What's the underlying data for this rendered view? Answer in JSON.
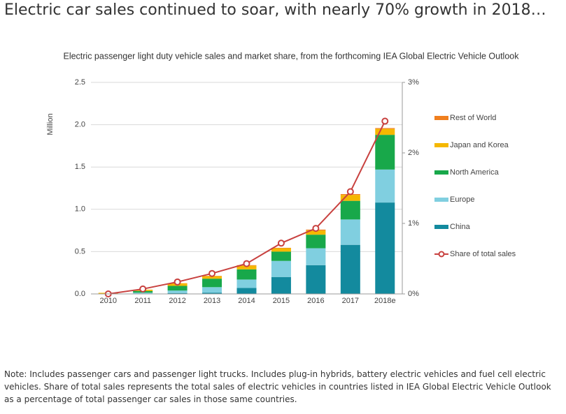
{
  "page_title": "Electric car sales continued to soar, with nearly 70% growth in 2018…",
  "chart_data": {
    "type": "bar",
    "stacked": true,
    "title": "Electric passenger light duty vehicle sales and market share, from the forthcoming IEA Global Electric Vehicle Outlook",
    "ylabel": "Million",
    "categories": [
      "2010",
      "2011",
      "2012",
      "2013",
      "2014",
      "2015",
      "2016",
      "2017",
      "2018e"
    ],
    "series": [
      {
        "name": "China",
        "color": "#138a9e",
        "values": [
          0.001,
          0.005,
          0.01,
          0.015,
          0.07,
          0.2,
          0.34,
          0.58,
          1.08
        ]
      },
      {
        "name": "Europe",
        "color": "#80cfe0",
        "values": [
          0.001,
          0.01,
          0.03,
          0.065,
          0.1,
          0.19,
          0.2,
          0.3,
          0.39
        ]
      },
      {
        "name": "North America",
        "color": "#18a84a",
        "values": [
          0.001,
          0.02,
          0.055,
          0.1,
          0.12,
          0.11,
          0.16,
          0.22,
          0.41
        ]
      },
      {
        "name": "Japan and Korea",
        "color": "#f5b800",
        "values": [
          0.01,
          0.015,
          0.03,
          0.03,
          0.045,
          0.04,
          0.05,
          0.07,
          0.07
        ]
      },
      {
        "name": "Rest of World",
        "color": "#f07f1e",
        "values": [
          0,
          0,
          0.002,
          0.003,
          0.005,
          0.005,
          0.01,
          0.01,
          0.01
        ]
      },
      {
        "name": "Share of total sales",
        "color": "#c8413f",
        "type": "line",
        "axis": "y2",
        "values": [
          0,
          0.07,
          0.17,
          0.29,
          0.43,
          0.72,
          0.93,
          1.45,
          2.45
        ]
      }
    ],
    "ylim": [
      0,
      2.5
    ],
    "yticks": [
      {
        "value": 0,
        "label": "0.0"
      },
      0.5,
      {
        "value": 1,
        "label": "1.0"
      },
      1.5,
      {
        "value": 2,
        "label": "2.0"
      },
      2.5
    ],
    "y2lim": [
      0,
      3
    ],
    "y2ticks": [
      {
        "value": 0,
        "label": "0%"
      },
      {
        "value": 1,
        "label": "1%"
      },
      {
        "value": 2,
        "label": "2%"
      },
      {
        "value": 3,
        "label": "3%"
      }
    ],
    "grid": true,
    "legend": "right"
  },
  "note": "Note: Includes passenger cars and passenger light trucks. Includes plug-in hybrids, battery electric vehicles and fuel cell electric vehicles. Share of total sales represents the total sales of electric vehicles in countries listed in IEA Global Electric Vehicle Outlook as a percentage of total passenger car sales in those same countries."
}
